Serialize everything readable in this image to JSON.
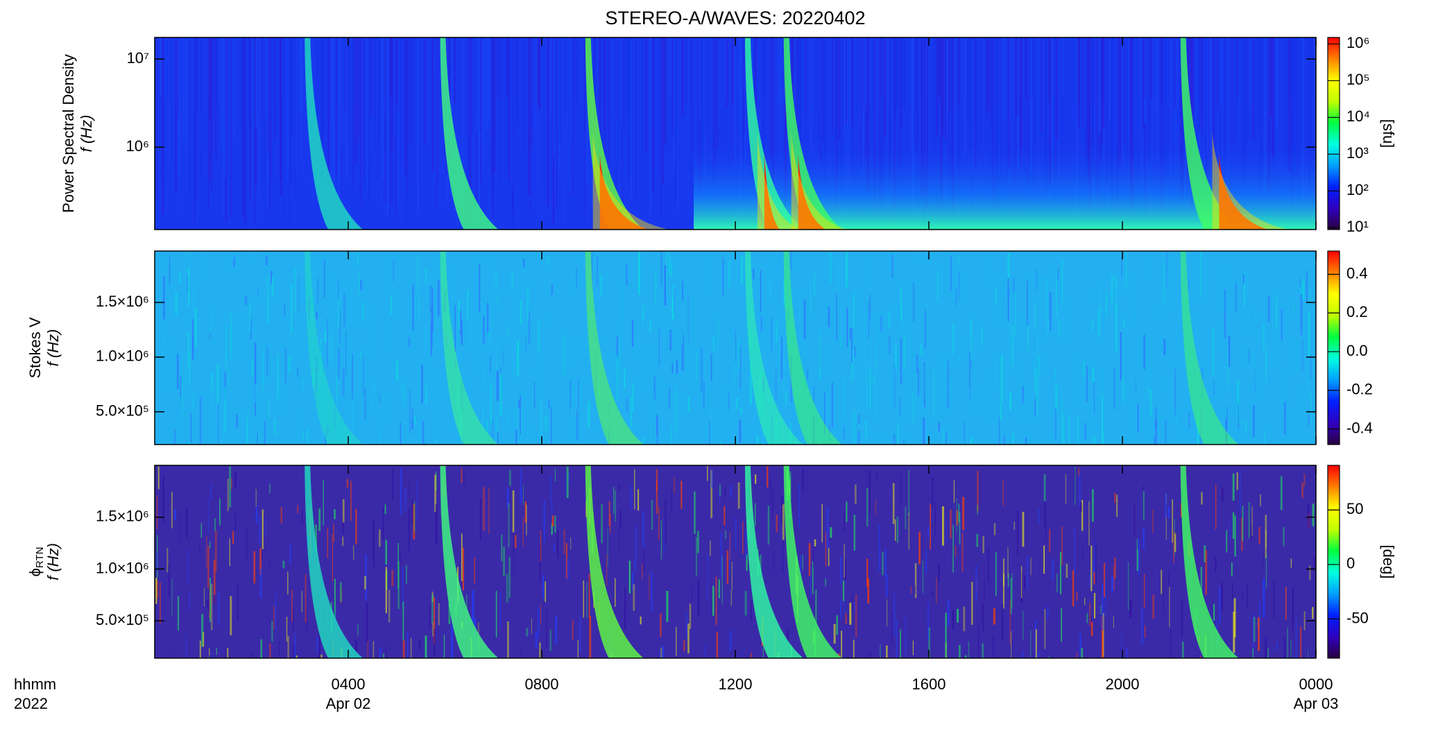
{
  "title": "STEREO-A/WAVES: 20220402",
  "colormap": [
    "#2a0040",
    "#3000c0",
    "#0020ff",
    "#00a0ff",
    "#00ffe0",
    "#00ff40",
    "#c0ff00",
    "#ffff00",
    "#ff8000",
    "#ff0000"
  ],
  "x_axis": {
    "xlim": [
      0,
      24
    ],
    "xticks": [
      {
        "value": 4,
        "label": "0400"
      },
      {
        "value": 8,
        "label": "0800"
      },
      {
        "value": 12,
        "label": "1200"
      },
      {
        "value": 16,
        "label": "1600"
      },
      {
        "value": 20,
        "label": "2000"
      },
      {
        "value": 24,
        "label": "0000"
      }
    ],
    "date_labels": [
      {
        "value": 4,
        "label": "Apr 02"
      },
      {
        "value": 24,
        "label": "Apr 03"
      }
    ],
    "axis_labels": [
      "hhmm",
      "2022"
    ]
  },
  "chart_data": [
    {
      "type": "heatmap",
      "y_label": "Power Spectral Density",
      "y_label2": "f (Hz)",
      "ylog": true,
      "ylim": [
        116000,
        17600000
      ],
      "yticks": [
        {
          "value": 1000000,
          "label": "10⁶"
        },
        {
          "value": 10000000,
          "label": "10⁷"
        }
      ],
      "clog": true,
      "clim": [
        8.9,
        1500000
      ],
      "cticks": [
        {
          "value": 10,
          "label": "10¹"
        },
        {
          "value": 100,
          "label": "10²"
        },
        {
          "value": 1000,
          "label": "10³"
        },
        {
          "value": 10000,
          "label": "10⁴"
        },
        {
          "value": 100000,
          "label": "10⁵"
        },
        {
          "value": 1000000,
          "label": "10⁶"
        }
      ],
      "colorbar_label": "[sfu]"
    },
    {
      "type": "heatmap",
      "y_label": "Stokes V",
      "y_label2": "f (Hz)",
      "ylog": false,
      "ylim": [
        200000,
        1970000
      ],
      "yticks": [
        {
          "value": 500000,
          "label": "5.0×10⁵"
        },
        {
          "value": 1000000,
          "label": "1.0×10⁶"
        },
        {
          "value": 1500000,
          "label": "1.5×10⁶"
        }
      ],
      "clog": false,
      "clim": [
        -0.48,
        0.52
      ],
      "cticks": [
        -0.4,
        -0.2,
        {
          "value": 0,
          "label": "0.0"
        },
        0.2,
        0.4
      ]
    },
    {
      "type": "heatmap",
      "y_label": "ϕ",
      "y_label_subscript": "RTN",
      "y_label2": "f (Hz)",
      "ylog": false,
      "ylim": [
        140000,
        2000000
      ],
      "yticks": [
        {
          "value": 500000,
          "label": "5.0×10⁵"
        },
        {
          "value": 1000000,
          "label": "1.0×10⁶"
        },
        {
          "value": 1500000,
          "label": "1.5×10⁶"
        }
      ],
      "clog": false,
      "clim": [
        -86,
        91
      ],
      "cticks": [
        -50,
        0,
        50
      ],
      "colorbar_label": "[deg]"
    }
  ]
}
